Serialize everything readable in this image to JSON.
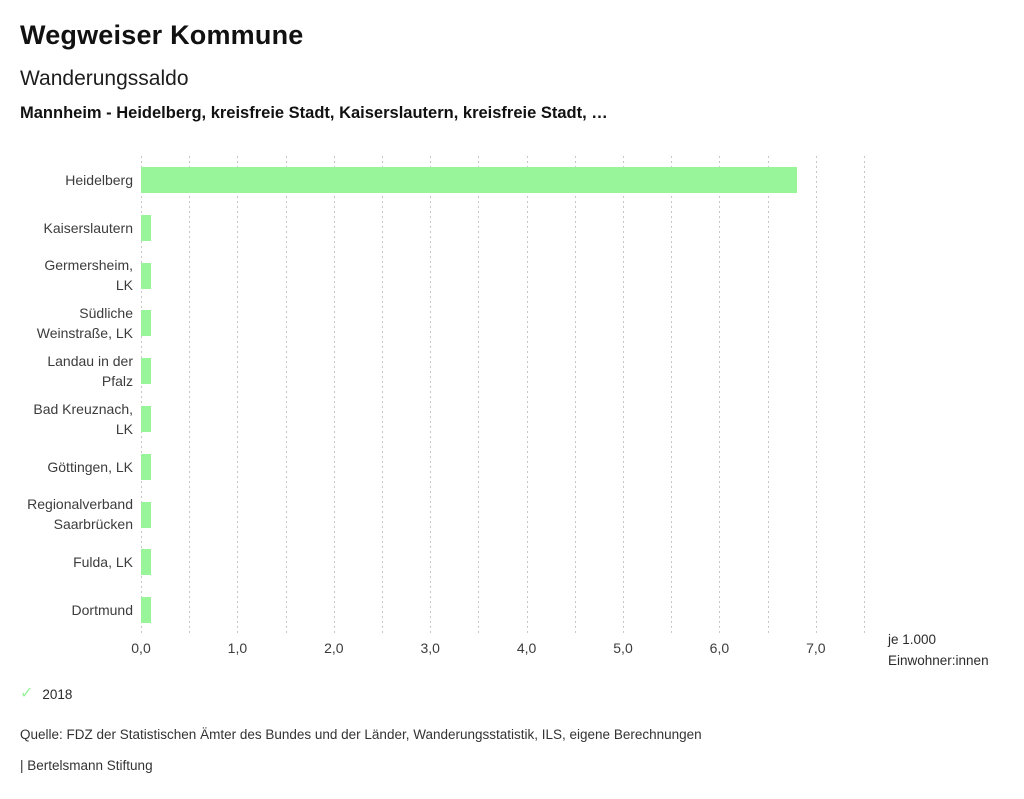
{
  "header": {
    "title": "Wegweiser Kommune",
    "subtitle": "Wanderungssaldo",
    "comparison": "Mannheim - Heidelberg, kreisfreie Stadt, Kaiserslautern, kreisfreie Stadt, …"
  },
  "chart_data": {
    "type": "bar",
    "orientation": "horizontal",
    "title": "Wanderungssaldo",
    "categories": [
      "Heidelberg",
      "Kaiserslautern",
      "Germersheim, LK",
      "Südliche Weinstraße, LK",
      "Landau in der Pfalz",
      "Bad Kreuznach, LK",
      "Göttingen, LK",
      "Regionalverband Saarbrücken",
      "Fulda, LK",
      "Dortmund"
    ],
    "category_lines": [
      [
        "Heidelberg"
      ],
      [
        "Kaiserslautern"
      ],
      [
        "Germersheim,",
        "LK"
      ],
      [
        "Südliche",
        "Weinstraße, LK"
      ],
      [
        "Landau in der",
        "Pfalz"
      ],
      [
        "Bad Kreuznach,",
        "LK"
      ],
      [
        "Göttingen, LK"
      ],
      [
        "Regionalverband",
        "Saarbrücken"
      ],
      [
        "Fulda, LK"
      ],
      [
        "Dortmund"
      ]
    ],
    "values": [
      6.8,
      0.1,
      0.1,
      0.1,
      0.1,
      0.1,
      0.1,
      0.1,
      0.1,
      0.1
    ],
    "series_year": "2018",
    "xlabel": "je 1.000 Einwohner:innen",
    "unit_label_lines": [
      "je 1.000",
      "Einwohner:innen"
    ],
    "xlim": [
      0,
      7.5
    ],
    "grid_step": 0.5,
    "grid": true,
    "x_ticks": [
      {
        "value": 0,
        "label": "0,0"
      },
      {
        "value": 1,
        "label": "1,0"
      },
      {
        "value": 2,
        "label": "2,0"
      },
      {
        "value": 3,
        "label": "3,0"
      },
      {
        "value": 4,
        "label": "4,0"
      },
      {
        "value": 5,
        "label": "5,0"
      },
      {
        "value": 6,
        "label": "6,0"
      },
      {
        "value": 7,
        "label": "7,0"
      }
    ],
    "bar_color": "#99f599",
    "legend_position": "bottom-left"
  },
  "legend": {
    "check_icon": "✓",
    "year": "2018"
  },
  "footer": {
    "source": "Quelle: FDZ der Statistischen Ämter des Bundes und der Länder, Wanderungsstatistik, ILS, eigene Berechnungen",
    "branding": "| Bertelsmann Stiftung"
  },
  "colors": {
    "accent_green": "#99f599",
    "grid_gray": "#c6c6c6",
    "text_dark": "#111111",
    "text_gray": "#3c3c3c"
  }
}
